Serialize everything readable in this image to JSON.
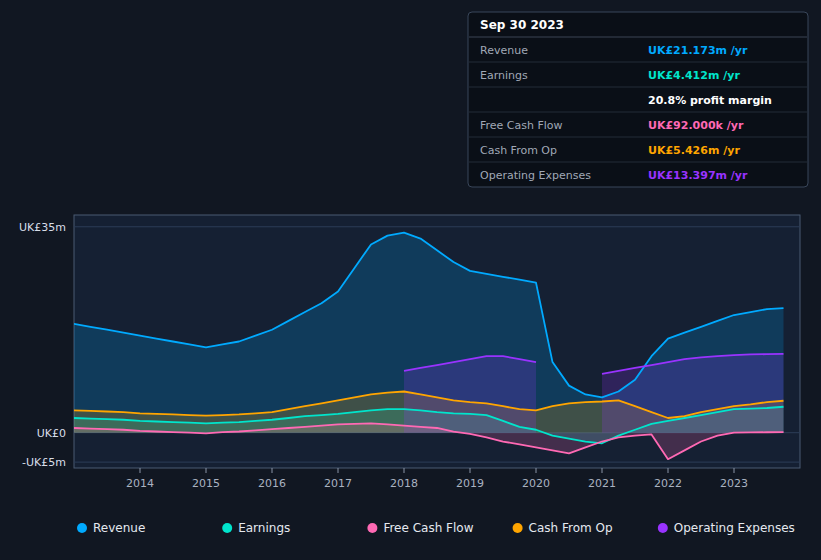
{
  "chart_data": {
    "type": "area",
    "x": [
      2013.0,
      2013.25,
      2013.5,
      2013.75,
      2014.0,
      2014.25,
      2014.5,
      2014.75,
      2015.0,
      2015.25,
      2015.5,
      2015.75,
      2016.0,
      2016.25,
      2016.5,
      2016.75,
      2017.0,
      2017.25,
      2017.5,
      2017.75,
      2018.0,
      2018.25,
      2018.5,
      2018.75,
      2019.0,
      2019.25,
      2019.5,
      2019.75,
      2020.0,
      2020.25,
      2020.5,
      2020.75,
      2021.0,
      2021.25,
      2021.5,
      2021.75,
      2022.0,
      2022.25,
      2022.5,
      2022.75,
      2023.0,
      2023.25,
      2023.5,
      2023.75
    ],
    "series": [
      {
        "name": "Revenue",
        "color": "#00aaff",
        "values": [
          18.5,
          18.0,
          17.5,
          17.0,
          16.5,
          16.0,
          15.5,
          15.0,
          14.5,
          15.0,
          15.5,
          16.5,
          17.5,
          19.0,
          20.5,
          22.0,
          24.0,
          28.0,
          32.0,
          33.5,
          34.0,
          33.0,
          31.0,
          29.0,
          27.5,
          27.0,
          26.5,
          26.0,
          25.5,
          12.0,
          8.0,
          6.5,
          6.0,
          7.0,
          9.0,
          13.0,
          16.0,
          17.0,
          18.0,
          19.0,
          20.0,
          20.5,
          21.0,
          21.173
        ]
      },
      {
        "name": "Earnings",
        "color": "#00e5cc",
        "values": [
          2.5,
          2.4,
          2.3,
          2.2,
          2.0,
          1.9,
          1.8,
          1.7,
          1.6,
          1.7,
          1.8,
          2.0,
          2.2,
          2.5,
          2.8,
          3.0,
          3.2,
          3.5,
          3.8,
          4.0,
          4.0,
          3.8,
          3.5,
          3.3,
          3.2,
          3.0,
          2.0,
          1.0,
          0.5,
          -0.5,
          -1.0,
          -1.5,
          -1.8,
          -0.5,
          0.5,
          1.5,
          2.0,
          2.5,
          3.0,
          3.5,
          4.0,
          4.1,
          4.2,
          4.412
        ]
      },
      {
        "name": "Free Cash Flow",
        "color": "#ff69b4",
        "values": [
          0.8,
          0.7,
          0.6,
          0.5,
          0.3,
          0.2,
          0.1,
          0.0,
          -0.1,
          0.1,
          0.2,
          0.4,
          0.6,
          0.8,
          1.0,
          1.2,
          1.4,
          1.5,
          1.6,
          1.4,
          1.2,
          1.0,
          0.8,
          0.2,
          -0.2,
          -0.8,
          -1.5,
          -2.0,
          -2.5,
          -3.0,
          -3.5,
          -2.5,
          -1.5,
          -0.8,
          -0.5,
          -0.3,
          -4.5,
          -3.0,
          -1.5,
          -0.5,
          0.0,
          0.05,
          0.08,
          0.092
        ]
      },
      {
        "name": "Cash From Op",
        "color": "#ffa500",
        "values": [
          3.8,
          3.7,
          3.6,
          3.5,
          3.3,
          3.2,
          3.1,
          3.0,
          2.9,
          3.0,
          3.1,
          3.3,
          3.5,
          4.0,
          4.5,
          5.0,
          5.5,
          6.0,
          6.5,
          6.8,
          7.0,
          6.5,
          6.0,
          5.5,
          5.2,
          5.0,
          4.5,
          4.0,
          3.8,
          4.5,
          5.0,
          5.2,
          5.3,
          5.5,
          4.5,
          3.5,
          2.5,
          2.8,
          3.5,
          4.0,
          4.5,
          4.8,
          5.2,
          5.426
        ]
      },
      {
        "name": "Operating Expenses",
        "color": "#9933ff",
        "values": [
          null,
          null,
          null,
          null,
          null,
          null,
          null,
          null,
          null,
          null,
          null,
          null,
          null,
          null,
          null,
          null,
          null,
          null,
          null,
          null,
          10.5,
          11.0,
          11.5,
          12.0,
          12.5,
          13.0,
          13.0,
          12.5,
          12.0,
          null,
          null,
          null,
          10.0,
          10.5,
          11.0,
          11.5,
          12.0,
          12.5,
          12.8,
          13.0,
          13.2,
          13.3,
          13.35,
          13.397
        ]
      }
    ],
    "xlim": [
      2013.0,
      2024.0
    ],
    "xticks": [
      2014,
      2015,
      2016,
      2017,
      2018,
      2019,
      2020,
      2021,
      2022,
      2023
    ],
    "ylim": [
      -6,
      37
    ],
    "yticks": [
      {
        "value": -5,
        "label": "-UK£5m"
      },
      {
        "value": 0,
        "label": "UK£0"
      },
      {
        "value": 35,
        "label": "UK£35m"
      }
    ],
    "grid": true,
    "legend": "bottom",
    "annotations": [
      {
        "label": "Sep 30 2023"
      },
      {
        "label": "Revenue",
        "value": "UK£21.173m /yr",
        "color": "#00aaff"
      },
      {
        "label": "Earnings",
        "value": "UK£4.412m /yr",
        "color": "#00e5cc"
      },
      {
        "value": "20.8% profit margin"
      },
      {
        "label": "Free Cash Flow",
        "value": "UK£92.000k /yr",
        "color": "#ff69b4"
      },
      {
        "label": "Cash From Op",
        "value": "UK£5.426m /yr",
        "color": "#ffa500"
      },
      {
        "label": "Operating Expenses",
        "value": "UK£13.397m /yr",
        "color": "#9933ff"
      }
    ]
  }
}
